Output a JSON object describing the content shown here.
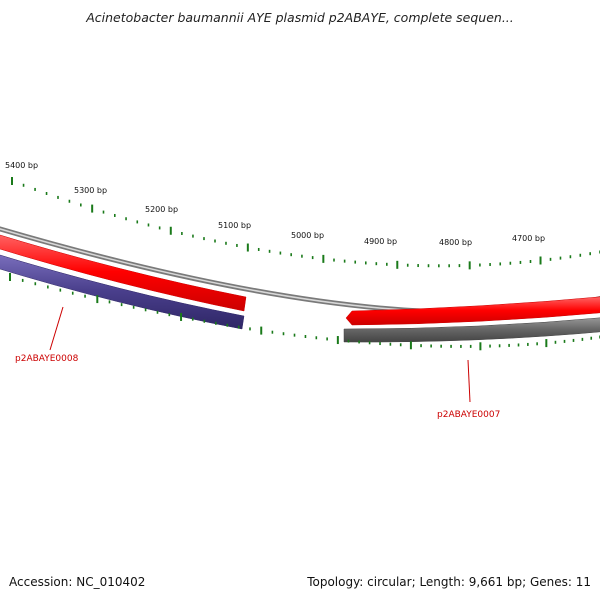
{
  "title": "Acinetobacter baumannii AYE plasmid p2ABAYE, complete sequen...",
  "footer": {
    "accession": "Accession: NC_010402",
    "summary": "Topology: circular; Length: 9,661 bp; Genes: 11"
  },
  "scale": {
    "unit": "bp",
    "labels": [
      "5400 bp",
      "5300 bp",
      "5200 bp",
      "5100 bp",
      "5000 bp",
      "4900 bp",
      "4800 bp",
      "4700 bp"
    ],
    "label_positions_bp": [
      5400,
      5300,
      5200,
      5100,
      5000,
      4900,
      4800,
      4700
    ]
  },
  "genes": [
    {
      "name": "p2ABAYE0008",
      "strand": "reverse",
      "start_bp": 5110,
      "end_bp": 5500,
      "track_color": "#4a3f8c",
      "color": "#ff0000"
    },
    {
      "name": "p2ABAYE0007",
      "strand": "forward",
      "start_bp": 4600,
      "end_bp": 4990,
      "track_color": "#666666",
      "color": "#ff0000"
    }
  ],
  "colors": {
    "tick": "#1a7a1a",
    "backbone": "#8a8a8a",
    "gene_label": "#cc0000"
  }
}
